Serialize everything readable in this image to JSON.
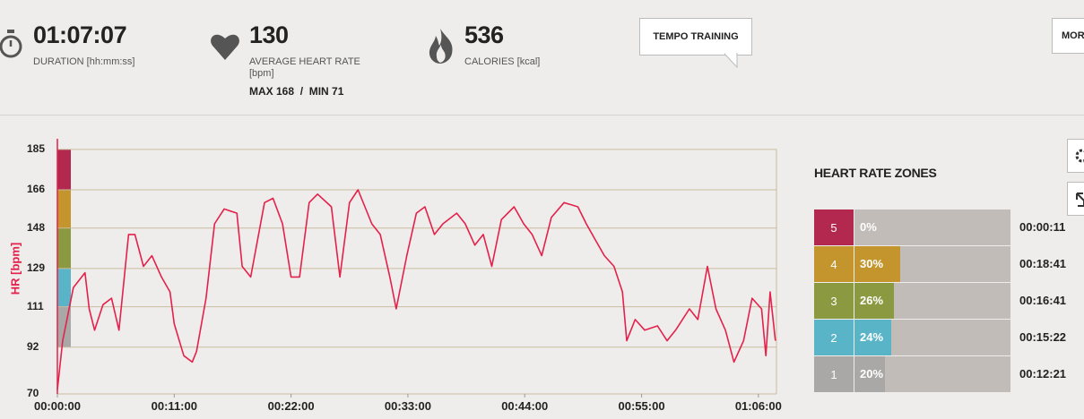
{
  "header": {
    "duration": {
      "value": "01:07:07",
      "label": "DURATION [hh:mm:ss]"
    },
    "heart_rate": {
      "value": "130",
      "label": "AVERAGE HEART RATE [bpm]",
      "max": "MAX 168",
      "min": "MIN 71"
    },
    "calories": {
      "value": "536",
      "label": "CALORIES [kcal]"
    },
    "training_button": "TEMPO TRAINING",
    "more_button": "MORE"
  },
  "chart_data": {
    "type": "line",
    "y_label": "HR [bpm]",
    "color": "#e3214b",
    "grid": true,
    "x": [
      0,
      0.5,
      1.5,
      2.6,
      3,
      3.5,
      4.3,
      5.1,
      5.8,
      6.7,
      7.3,
      8.1,
      8.9,
      9.8,
      10.6,
      11,
      11.9,
      12.7,
      13.1,
      14,
      14.8,
      15.7,
      16.9,
      17.4,
      18.2,
      19.5,
      20.3,
      21.2,
      22,
      22.8,
      23.7,
      24.5,
      25.8,
      26.6,
      27.5,
      28.3,
      29.6,
      30.4,
      31.3,
      31.9,
      32.9,
      33.8,
      34.6,
      35.5,
      36.3,
      37.6,
      38.4,
      39.3,
      40.1,
      40.9,
      41.8,
      43,
      43.9,
      44.7,
      45.6,
      46.5,
      47.7,
      49,
      49.8,
      50.7,
      51.5,
      52.4,
      53.2,
      53.6,
      54.4,
      55.3,
      56.5,
      57.4,
      58.2,
      59.5,
      60.3,
      61.2,
      62,
      62.9,
      63.7,
      64.6,
      65.4,
      66.3,
      66.7,
      67.1,
      67.6
    ],
    "values": [
      72,
      95,
      120,
      127,
      110,
      100,
      112,
      115,
      100,
      145,
      145,
      130,
      135,
      125,
      118,
      103,
      88,
      85,
      90,
      115,
      150,
      157,
      155,
      130,
      125,
      160,
      162,
      150,
      125,
      125,
      160,
      164,
      158,
      125,
      160,
      166,
      150,
      145,
      125,
      110,
      135,
      155,
      158,
      145,
      150,
      155,
      150,
      140,
      145,
      130,
      152,
      158,
      150,
      145,
      135,
      153,
      160,
      158,
      150,
      142,
      135,
      130,
      118,
      95,
      105,
      100,
      102,
      95,
      100,
      110,
      105,
      130,
      110,
      100,
      85,
      95,
      115,
      110,
      88,
      118,
      95
    ],
    "xlim": [
      0,
      67.7
    ],
    "ylim": [
      70,
      190
    ],
    "xticks": [
      {
        "value": 0,
        "label": "00:00:00"
      },
      {
        "value": 11,
        "label": "00:11:00"
      },
      {
        "value": 22,
        "label": "00:22:00"
      },
      {
        "value": 33,
        "label": "00:33:00"
      },
      {
        "value": 44,
        "label": "00:44:00"
      },
      {
        "value": 55,
        "label": "00:55:00"
      },
      {
        "value": 66,
        "label": "01:06:00"
      }
    ],
    "yticks": [
      70,
      92,
      111,
      129,
      148,
      166,
      185
    ]
  },
  "zones": {
    "title": "HEART RATE ZONES",
    "rows": [
      {
        "zone": "5",
        "percent": "0%",
        "time": "00:00:11",
        "color": "#b3284f"
      },
      {
        "zone": "4",
        "percent": "30%",
        "time": "00:18:41",
        "color": "#c4952c"
      },
      {
        "zone": "3",
        "percent": "26%",
        "time": "00:16:41",
        "color": "#8b9a41"
      },
      {
        "zone": "2",
        "percent": "24%",
        "time": "00:15:22",
        "color": "#5ab4c8"
      },
      {
        "zone": "1",
        "percent": "20%",
        "time": "00:12:21",
        "color": "#a9a8a6"
      }
    ]
  }
}
